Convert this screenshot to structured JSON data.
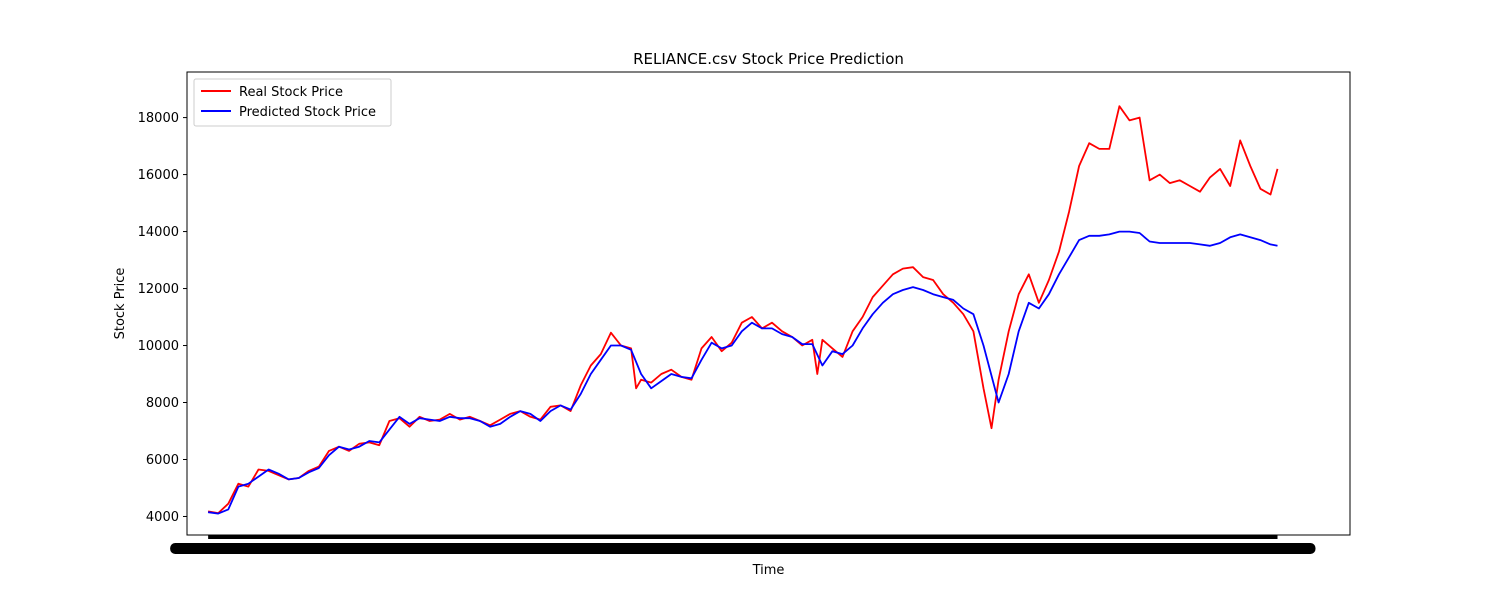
{
  "chart_data": {
    "type": "line",
    "title": "RELIANCE.csv Stock Price Prediction",
    "xlabel": "Time",
    "ylabel": "Stock Price",
    "ylim": [
      3350,
      19600
    ],
    "xlim": [
      -21,
      1134
    ],
    "y_ticks": [
      4000,
      6000,
      8000,
      10000,
      12000,
      14000,
      16000,
      18000
    ],
    "grid": false,
    "legend_position": "top-left",
    "colors": {
      "real": "#ff0000",
      "predicted": "#0000ff"
    },
    "series": [
      {
        "name": "Real Stock Price",
        "color": "#ff0000",
        "points": [
          [
            0,
            4180
          ],
          [
            10,
            4120
          ],
          [
            20,
            4450
          ],
          [
            30,
            5150
          ],
          [
            40,
            5050
          ],
          [
            50,
            5650
          ],
          [
            60,
            5600
          ],
          [
            70,
            5450
          ],
          [
            80,
            5300
          ],
          [
            90,
            5350
          ],
          [
            100,
            5600
          ],
          [
            110,
            5750
          ],
          [
            120,
            6300
          ],
          [
            130,
            6450
          ],
          [
            140,
            6300
          ],
          [
            150,
            6550
          ],
          [
            160,
            6600
          ],
          [
            170,
            6500
          ],
          [
            180,
            7350
          ],
          [
            190,
            7450
          ],
          [
            200,
            7150
          ],
          [
            210,
            7500
          ],
          [
            220,
            7350
          ],
          [
            230,
            7400
          ],
          [
            240,
            7600
          ],
          [
            250,
            7400
          ],
          [
            260,
            7500
          ],
          [
            270,
            7350
          ],
          [
            280,
            7200
          ],
          [
            290,
            7400
          ],
          [
            300,
            7600
          ],
          [
            310,
            7700
          ],
          [
            320,
            7500
          ],
          [
            330,
            7400
          ],
          [
            340,
            7850
          ],
          [
            350,
            7900
          ],
          [
            360,
            7700
          ],
          [
            370,
            8600
          ],
          [
            380,
            9300
          ],
          [
            390,
            9700
          ],
          [
            400,
            10450
          ],
          [
            410,
            10000
          ],
          [
            420,
            9900
          ],
          [
            425,
            8500
          ],
          [
            430,
            8800
          ],
          [
            440,
            8700
          ],
          [
            450,
            9000
          ],
          [
            460,
            9150
          ],
          [
            470,
            8900
          ],
          [
            480,
            8800
          ],
          [
            490,
            9900
          ],
          [
            500,
            10300
          ],
          [
            510,
            9800
          ],
          [
            520,
            10100
          ],
          [
            530,
            10800
          ],
          [
            540,
            11000
          ],
          [
            550,
            10600
          ],
          [
            560,
            10800
          ],
          [
            570,
            10500
          ],
          [
            580,
            10300
          ],
          [
            590,
            10000
          ],
          [
            600,
            10200
          ],
          [
            605,
            9000
          ],
          [
            610,
            10200
          ],
          [
            620,
            9900
          ],
          [
            630,
            9600
          ],
          [
            640,
            10500
          ],
          [
            650,
            11000
          ],
          [
            660,
            11700
          ],
          [
            670,
            12100
          ],
          [
            680,
            12500
          ],
          [
            690,
            12700
          ],
          [
            700,
            12750
          ],
          [
            710,
            12400
          ],
          [
            720,
            12300
          ],
          [
            730,
            11800
          ],
          [
            740,
            11500
          ],
          [
            750,
            11100
          ],
          [
            760,
            10500
          ],
          [
            770,
            8500
          ],
          [
            778,
            7100
          ],
          [
            785,
            8800
          ],
          [
            795,
            10500
          ],
          [
            805,
            11800
          ],
          [
            815,
            12500
          ],
          [
            825,
            11500
          ],
          [
            835,
            12300
          ],
          [
            845,
            13300
          ],
          [
            855,
            14700
          ],
          [
            865,
            16300
          ],
          [
            875,
            17100
          ],
          [
            885,
            16900
          ],
          [
            895,
            16900
          ],
          [
            905,
            18400
          ],
          [
            915,
            17900
          ],
          [
            925,
            18000
          ],
          [
            935,
            15800
          ],
          [
            945,
            16000
          ],
          [
            955,
            15700
          ],
          [
            965,
            15800
          ],
          [
            975,
            15600
          ],
          [
            985,
            15400
          ],
          [
            995,
            15900
          ],
          [
            1005,
            16200
          ],
          [
            1015,
            15600
          ],
          [
            1025,
            17200
          ],
          [
            1035,
            16300
          ],
          [
            1045,
            15500
          ],
          [
            1055,
            15300
          ],
          [
            1062,
            16200
          ]
        ]
      },
      {
        "name": "Predicted Stock Price",
        "color": "#0000ff",
        "points": [
          [
            0,
            4150
          ],
          [
            10,
            4100
          ],
          [
            20,
            4250
          ],
          [
            30,
            5050
          ],
          [
            40,
            5150
          ],
          [
            50,
            5400
          ],
          [
            60,
            5650
          ],
          [
            70,
            5500
          ],
          [
            80,
            5300
          ],
          [
            90,
            5350
          ],
          [
            100,
            5550
          ],
          [
            110,
            5700
          ],
          [
            120,
            6150
          ],
          [
            130,
            6450
          ],
          [
            140,
            6350
          ],
          [
            150,
            6450
          ],
          [
            160,
            6650
          ],
          [
            170,
            6600
          ],
          [
            180,
            7050
          ],
          [
            190,
            7500
          ],
          [
            200,
            7250
          ],
          [
            210,
            7450
          ],
          [
            220,
            7400
          ],
          [
            230,
            7350
          ],
          [
            240,
            7500
          ],
          [
            250,
            7450
          ],
          [
            260,
            7450
          ],
          [
            270,
            7350
          ],
          [
            280,
            7150
          ],
          [
            290,
            7250
          ],
          [
            300,
            7500
          ],
          [
            310,
            7700
          ],
          [
            320,
            7600
          ],
          [
            330,
            7350
          ],
          [
            340,
            7700
          ],
          [
            350,
            7900
          ],
          [
            360,
            7750
          ],
          [
            370,
            8300
          ],
          [
            380,
            9000
          ],
          [
            390,
            9500
          ],
          [
            400,
            10000
          ],
          [
            410,
            10000
          ],
          [
            420,
            9850
          ],
          [
            430,
            9000
          ],
          [
            440,
            8500
          ],
          [
            450,
            8750
          ],
          [
            460,
            9000
          ],
          [
            470,
            8900
          ],
          [
            480,
            8850
          ],
          [
            490,
            9500
          ],
          [
            500,
            10100
          ],
          [
            510,
            9900
          ],
          [
            520,
            10000
          ],
          [
            530,
            10500
          ],
          [
            540,
            10800
          ],
          [
            550,
            10600
          ],
          [
            560,
            10600
          ],
          [
            570,
            10400
          ],
          [
            580,
            10300
          ],
          [
            590,
            10050
          ],
          [
            600,
            10050
          ],
          [
            610,
            9300
          ],
          [
            620,
            9800
          ],
          [
            630,
            9700
          ],
          [
            640,
            10000
          ],
          [
            650,
            10600
          ],
          [
            660,
            11100
          ],
          [
            670,
            11500
          ],
          [
            680,
            11800
          ],
          [
            690,
            11950
          ],
          [
            700,
            12050
          ],
          [
            710,
            11950
          ],
          [
            720,
            11800
          ],
          [
            730,
            11700
          ],
          [
            740,
            11600
          ],
          [
            750,
            11300
          ],
          [
            760,
            11100
          ],
          [
            770,
            10000
          ],
          [
            785,
            8000
          ],
          [
            795,
            9000
          ],
          [
            805,
            10500
          ],
          [
            815,
            11500
          ],
          [
            825,
            11300
          ],
          [
            835,
            11800
          ],
          [
            845,
            12500
          ],
          [
            855,
            13100
          ],
          [
            865,
            13700
          ],
          [
            875,
            13850
          ],
          [
            885,
            13850
          ],
          [
            895,
            13900
          ],
          [
            905,
            14000
          ],
          [
            915,
            14000
          ],
          [
            925,
            13950
          ],
          [
            935,
            13650
          ],
          [
            945,
            13600
          ],
          [
            955,
            13600
          ],
          [
            965,
            13600
          ],
          [
            975,
            13600
          ],
          [
            985,
            13550
          ],
          [
            995,
            13500
          ],
          [
            1005,
            13600
          ],
          [
            1015,
            13800
          ],
          [
            1025,
            13900
          ],
          [
            1035,
            13800
          ],
          [
            1045,
            13700
          ],
          [
            1055,
            13550
          ],
          [
            1062,
            13500
          ]
        ]
      }
    ]
  }
}
